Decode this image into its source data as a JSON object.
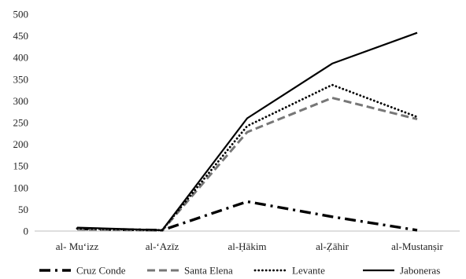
{
  "chart_data": {
    "type": "line",
    "title": "",
    "xlabel": "",
    "ylabel": "",
    "categories": [
      "al- Mu‘izz",
      "al-‘Azīz",
      "al-Ḥākim",
      "al-Ẓāhir",
      "al-Mustanṣir"
    ],
    "ylim": [
      0,
      500
    ],
    "yticks": [
      0,
      50,
      100,
      150,
      200,
      250,
      300,
      350,
      400,
      450,
      500
    ],
    "grid": false,
    "legend_position": "bottom",
    "series": [
      {
        "name": "Cruz Conde",
        "values": [
          5,
          2,
          68,
          33,
          2
        ],
        "color": "#000000",
        "style": "dash-dot"
      },
      {
        "name": "Santa Elena",
        "values": [
          4,
          1,
          228,
          307,
          258
        ],
        "color": "#777777",
        "style": "dashed"
      },
      {
        "name": "Levante",
        "values": [
          6,
          2,
          242,
          337,
          263
        ],
        "color": "#000000",
        "style": "dotted"
      },
      {
        "name": "Jaboneras",
        "values": [
          8,
          2,
          260,
          386,
          457
        ],
        "color": "#000000",
        "style": "solid"
      }
    ]
  }
}
